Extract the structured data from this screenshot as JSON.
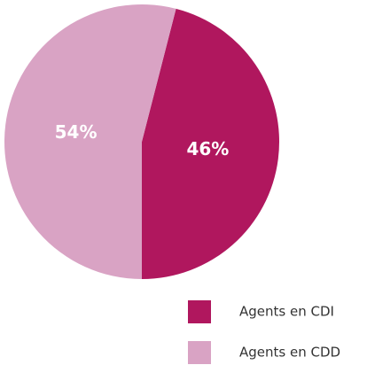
{
  "chart_data": {
    "type": "pie",
    "categories": [
      "Agents en CDI",
      "Agents en CDD"
    ],
    "values": [
      46,
      54
    ],
    "value_labels": [
      "46%",
      "54%"
    ],
    "colors": [
      "#b0175e",
      "#d9a3c4"
    ],
    "legend": "bottom-right"
  }
}
